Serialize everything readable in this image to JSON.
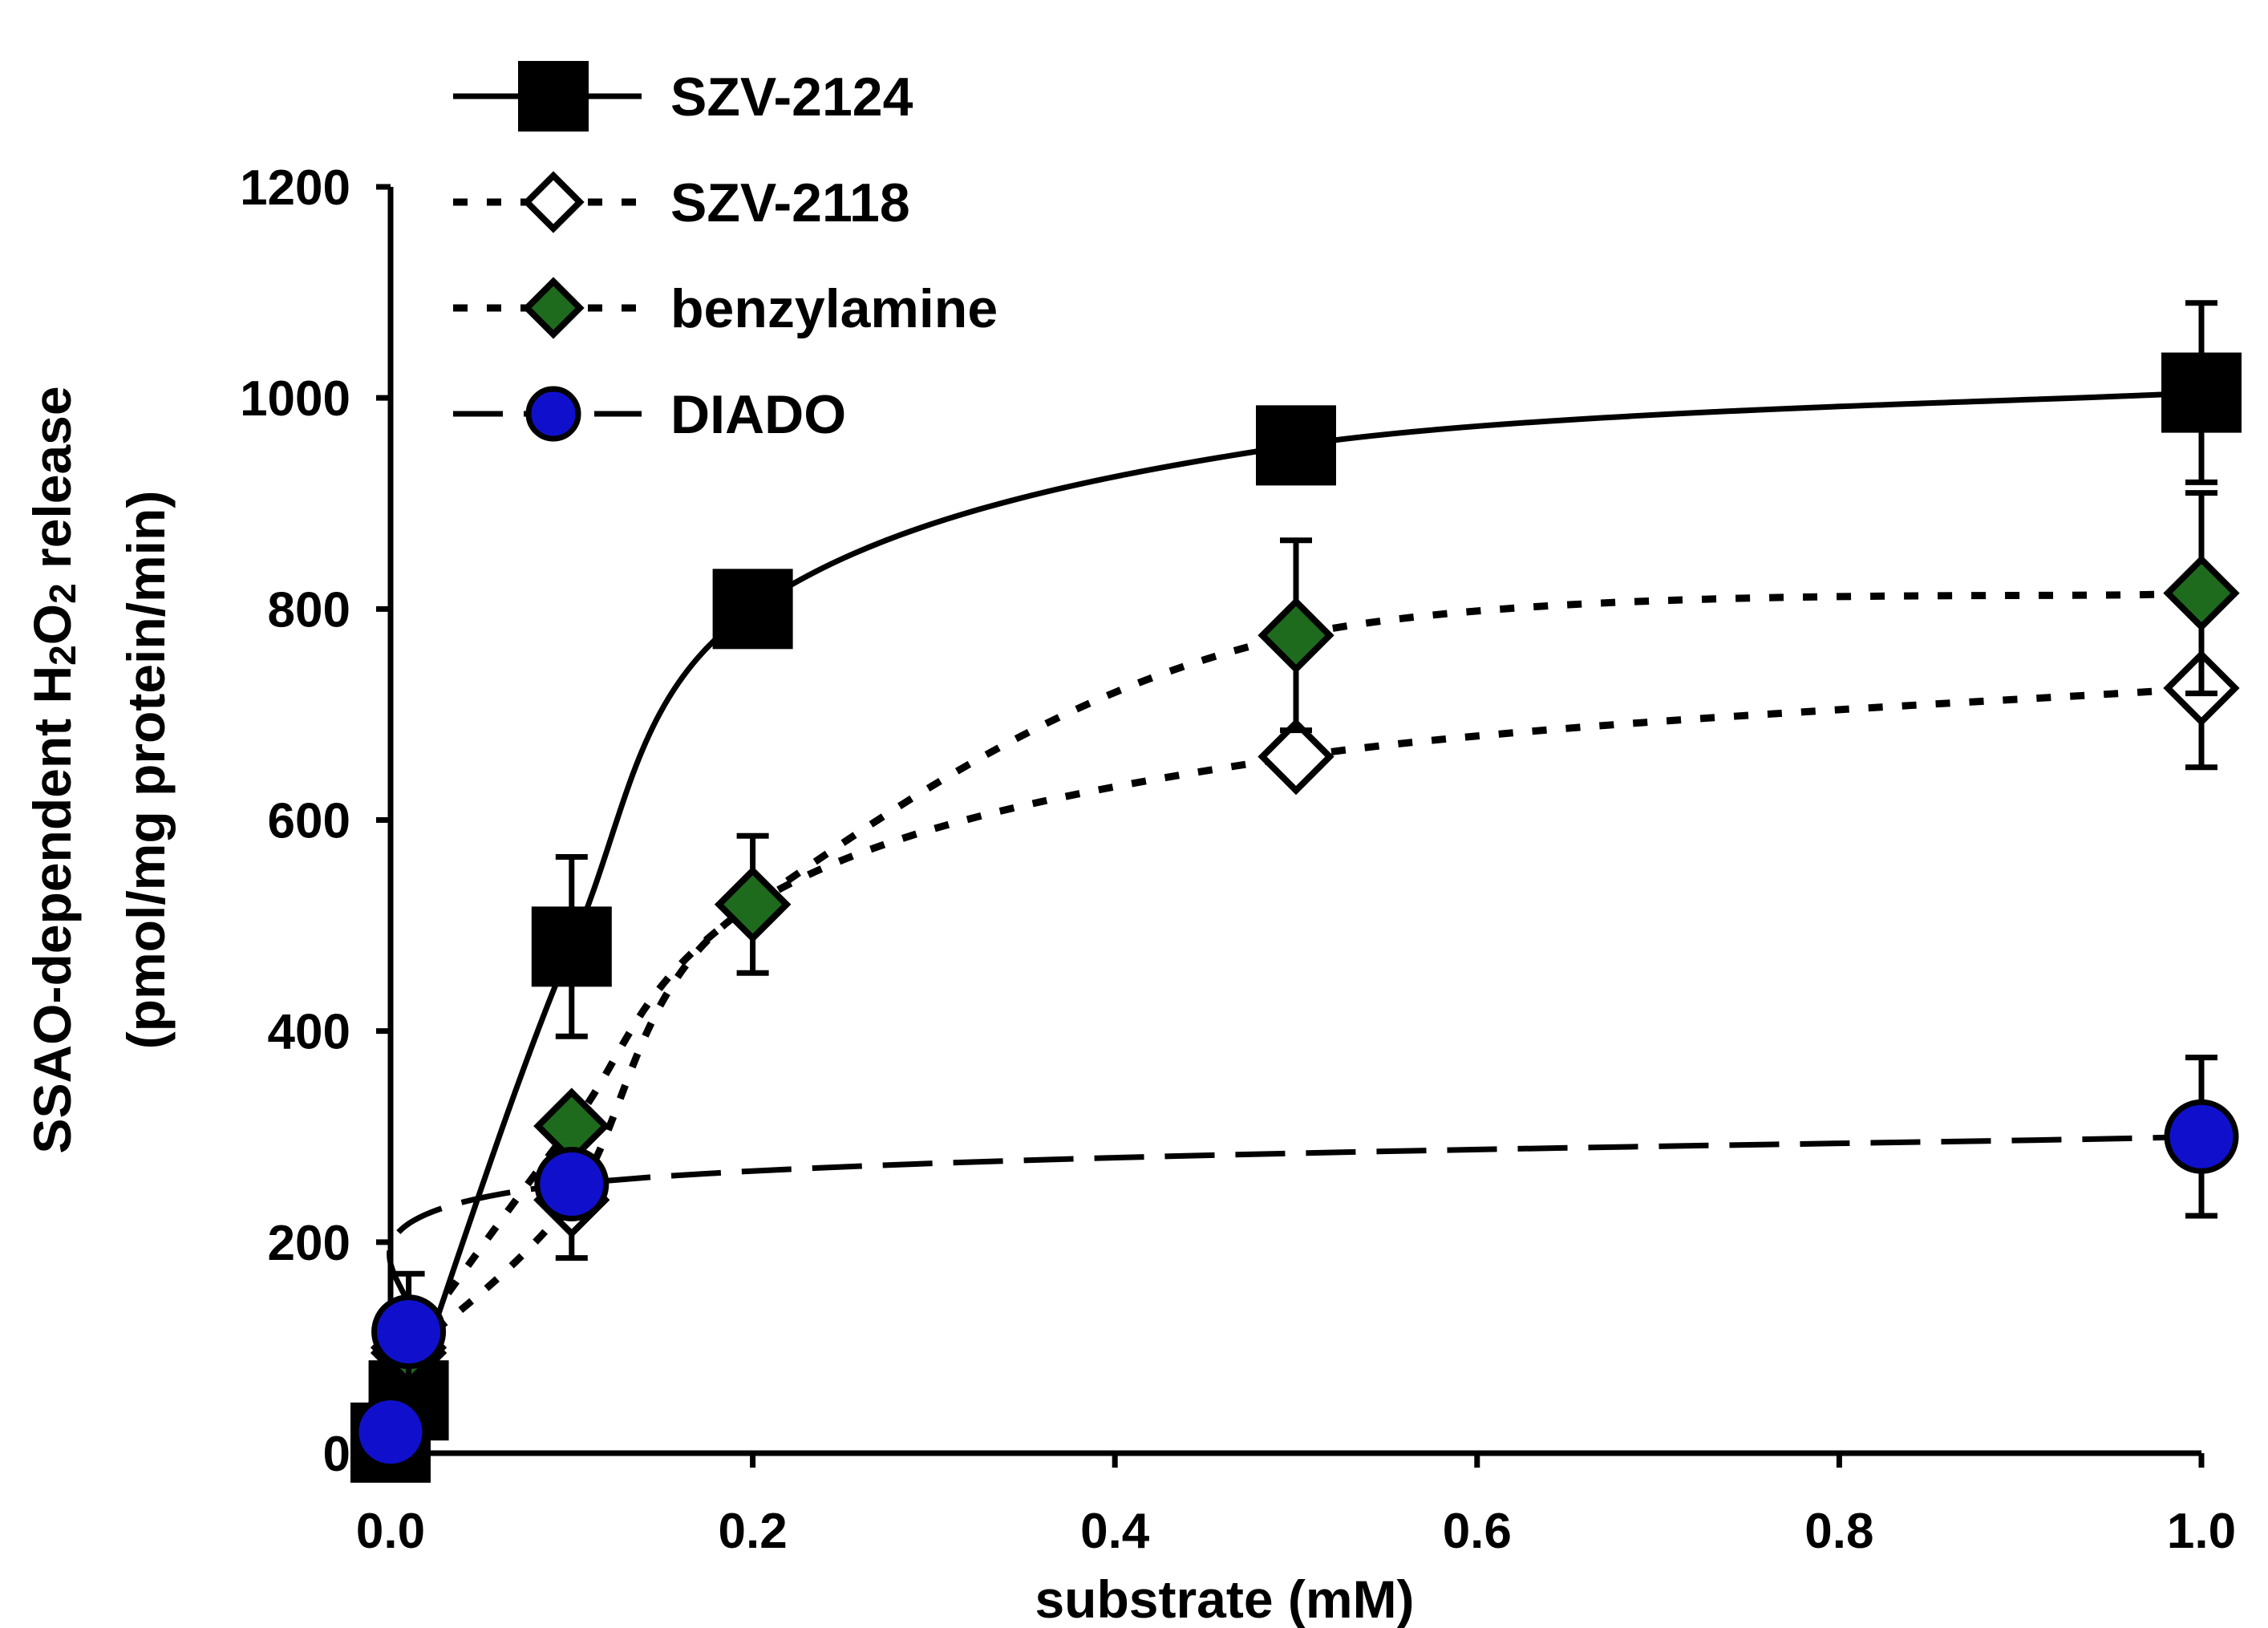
{
  "chart_data": {
    "type": "line",
    "title": "",
    "xlabel": "substrate (mM)",
    "ylabel": {
      "line1_parts": [
        "SSAO-dependent  H",
        "2",
        "O",
        "2",
        " release"
      ],
      "line2": "(pmol/mg protein/min)"
    },
    "xlim": [
      0,
      1.0
    ],
    "ylim": [
      0,
      1200
    ],
    "x_ticks": [
      0.0,
      0.2,
      0.4,
      0.6,
      0.8,
      1.0
    ],
    "x_tick_labels": [
      "0.0",
      "0.2",
      "0.4",
      "0.6",
      "0.8",
      "1.0"
    ],
    "y_ticks": [
      0,
      200,
      400,
      600,
      800,
      1000,
      1200
    ],
    "y_tick_labels": [
      "0",
      "200",
      "400",
      "600",
      "800",
      "1000",
      "1200"
    ],
    "grid": false,
    "legend_position": "top-left",
    "series": [
      {
        "name": "SZV-2124",
        "marker": "square",
        "fill": "#000000",
        "stroke": "#000000",
        "line_style": "solid",
        "x": [
          0.0,
          0.01,
          0.1,
          0.2,
          0.5,
          1.0
        ],
        "values": [
          10,
          50,
          480,
          800,
          955,
          1005
        ],
        "error": [
          null,
          null,
          85,
          null,
          null,
          85
        ]
      },
      {
        "name": "SZV-2118",
        "marker": "diamond",
        "fill": "#ffffff",
        "stroke": "#000000",
        "line_style": "dotted",
        "x": [
          0.01,
          0.1,
          0.2,
          0.5,
          1.0
        ],
        "values": [
          95,
          240,
          520,
          660,
          725
        ],
        "error": [
          null,
          55,
          null,
          null,
          75
        ]
      },
      {
        "name": "benzylamine",
        "marker": "diamond",
        "fill": "#1e6b1e",
        "stroke": "#000000",
        "line_style": "dotted",
        "x": [
          0.01,
          0.1,
          0.2,
          0.5,
          1.0
        ],
        "values": [
          100,
          310,
          520,
          775,
          815
        ],
        "error": [
          null,
          null,
          65,
          90,
          95
        ]
      },
      {
        "name": "DIADO",
        "marker": "circle",
        "fill": "#1010cc",
        "stroke": "#000000",
        "line_style": "long-dash",
        "x": [
          0.0,
          0.01,
          0.1,
          1.0
        ],
        "values": [
          20,
          115,
          255,
          300
        ],
        "error": [
          null,
          55,
          null,
          75
        ]
      }
    ]
  }
}
